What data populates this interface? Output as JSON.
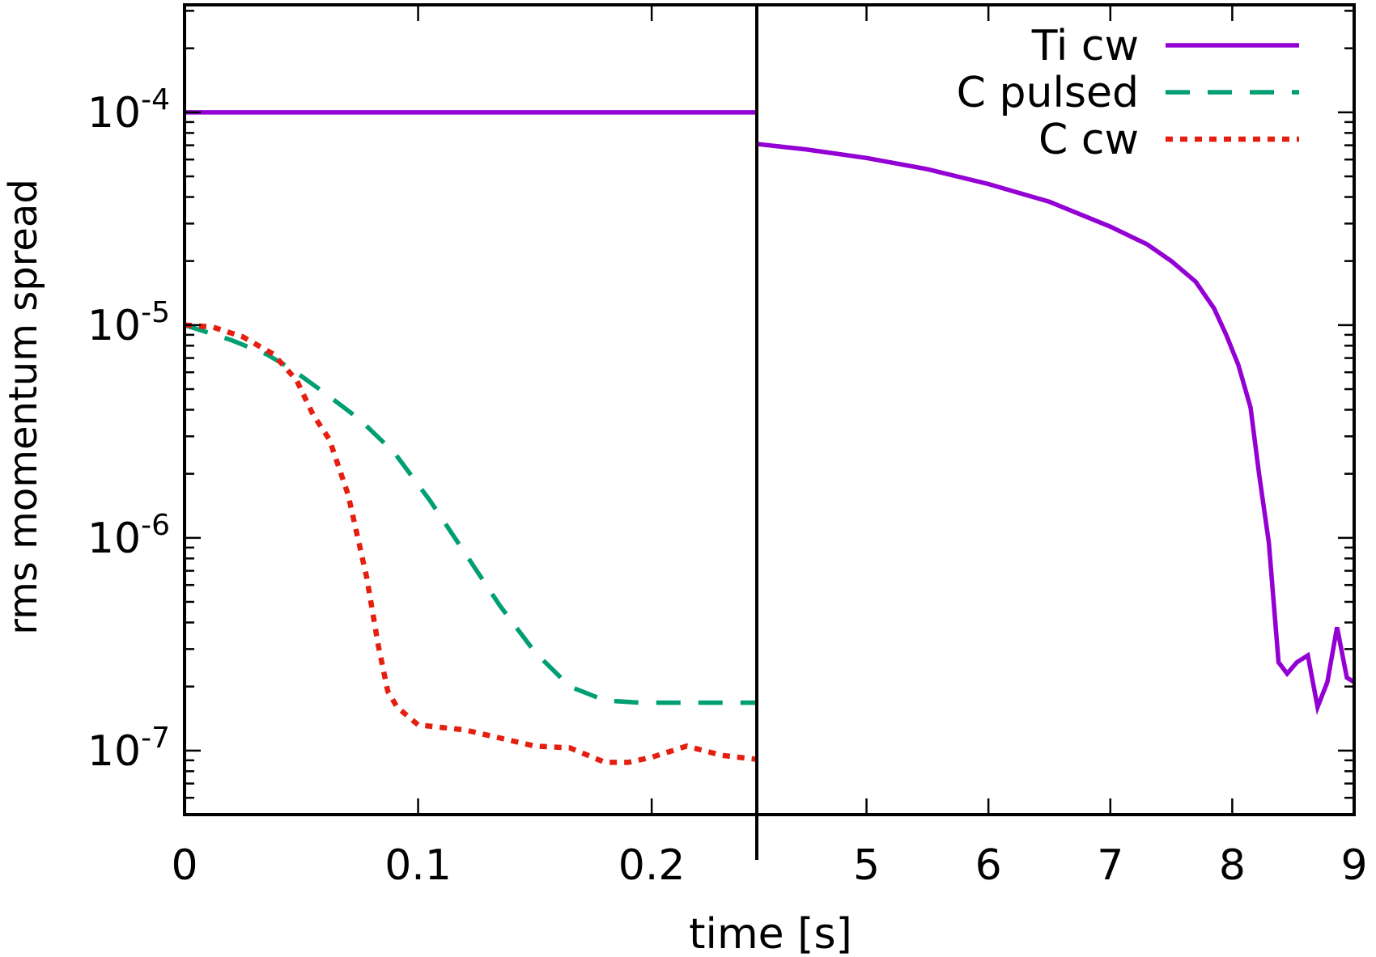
{
  "chart_data": {
    "type": "line",
    "title": "",
    "xlabel": "time [s]",
    "ylabel": "rms momentum spread",
    "yscale": "log",
    "ylim": [
      5e-08,
      0.00032
    ],
    "grid": false,
    "legend_position": "top-right",
    "colors": {
      "Ti cw": "#9400d3",
      "C pulsed": "#009e73",
      "C cw": "#e51e10",
      "axis": "#000000"
    },
    "ytick_labels": [
      {
        "value": 0.0001,
        "base": "10",
        "exp": "-4"
      },
      {
        "value": 1e-05,
        "base": "10",
        "exp": "-5"
      },
      {
        "value": 1e-06,
        "base": "10",
        "exp": "-6"
      },
      {
        "value": 1e-07,
        "base": "10",
        "exp": "-7"
      }
    ],
    "panels": [
      {
        "name": "left",
        "xlim": [
          0,
          0.245
        ],
        "xticks": [
          0,
          0.1,
          0.2
        ],
        "xtick_labels": [
          "0",
          "0.1",
          "0.2"
        ],
        "series": [
          {
            "name": "Ti cw",
            "style": "solid",
            "x": [
              0,
              0.245
            ],
            "y": [
              0.0001,
              0.0001
            ]
          },
          {
            "name": "C pulsed",
            "style": "dashed",
            "x": [
              0,
              0.02,
              0.035,
              0.045,
              0.06,
              0.075,
              0.09,
              0.105,
              0.12,
              0.135,
              0.15,
              0.165,
              0.18,
              0.195,
              0.21,
              0.245
            ],
            "y": [
              1e-05,
              8.5e-06,
              7.3e-06,
              6.3e-06,
              4.8e-06,
              3.6e-06,
              2.5e-06,
              1.5e-06,
              8.5e-07,
              4.8e-07,
              2.9e-07,
              2e-07,
              1.72e-07,
              1.68e-07,
              1.68e-07,
              1.68e-07
            ]
          },
          {
            "name": "C cw",
            "style": "dotted",
            "x": [
              0,
              0.012,
              0.025,
              0.038,
              0.048,
              0.055,
              0.062,
              0.07,
              0.078,
              0.083,
              0.087,
              0.091,
              0.1,
              0.12,
              0.15,
              0.165,
              0.18,
              0.19,
              0.2,
              0.215,
              0.23,
              0.245
            ],
            "y": [
              1e-05,
              9.8e-06,
              8.8e-06,
              7.3e-06,
              5.5e-06,
              3.8e-06,
              2.9e-06,
              1.6e-06,
              6.5e-07,
              3.1e-07,
              1.9e-07,
              1.6e-07,
              1.32e-07,
              1.25e-07,
              1.05e-07,
              1.03e-07,
              8.8e-08,
              8.8e-08,
              9.3e-08,
              1.05e-07,
              9.5e-08,
              9.1e-08
            ]
          }
        ]
      },
      {
        "name": "right",
        "xlim": [
          4.1,
          9
        ],
        "xticks": [
          5,
          6,
          7,
          8,
          9
        ],
        "xtick_labels": [
          "5",
          "6",
          "7",
          "8",
          "9"
        ],
        "series": [
          {
            "name": "Ti cw",
            "style": "solid",
            "x": [
              4.1,
              4.5,
              5,
              5.5,
              6,
              6.5,
              7,
              7.3,
              7.5,
              7.7,
              7.85,
              7.95,
              8.05,
              8.15,
              8.22,
              8.3,
              8.38,
              8.45,
              8.53,
              8.62,
              8.7,
              8.78,
              8.86,
              8.94,
              9
            ],
            "y": [
              7.1e-05,
              6.7e-05,
              6.1e-05,
              5.4e-05,
              4.6e-05,
              3.8e-05,
              2.9e-05,
              2.4e-05,
              2e-05,
              1.6e-05,
              1.2e-05,
              9e-06,
              6.5e-06,
              4.1e-06,
              2e-06,
              9.5e-07,
              2.6e-07,
              2.3e-07,
              2.6e-07,
              2.8e-07,
              1.6e-07,
              2.1e-07,
              3.8e-07,
              2.2e-07,
              2.1e-07
            ]
          }
        ]
      }
    ],
    "legend": [
      {
        "name": "Ti cw",
        "label": "Ti cw",
        "style": "solid"
      },
      {
        "name": "C pulsed",
        "label": "C pulsed",
        "style": "dashed"
      },
      {
        "name": "C cw",
        "label": "C cw",
        "style": "dotted"
      }
    ]
  }
}
